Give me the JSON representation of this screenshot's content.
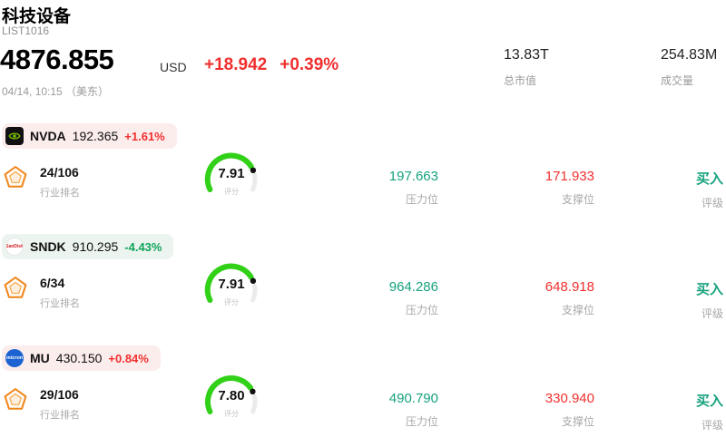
{
  "header": {
    "title": "科技设备",
    "subtitle": "LIST1016"
  },
  "quote": {
    "price": "4876.855",
    "currency": "USD",
    "change": "+18.942",
    "change_pct": "+0.39%",
    "timestamp": "04/14, 10:15 （美东）",
    "stats": [
      {
        "value": "13.83T",
        "label": "总市值"
      },
      {
        "value": "254.83M",
        "label": "成交量"
      }
    ]
  },
  "labels": {
    "rank": "行业排名",
    "score": "评分",
    "resistance": "压力位",
    "support": "支撑位",
    "rating": "评级"
  },
  "colors": {
    "up": "#f0302f",
    "down": "#10a55a",
    "teal": "#17a27e",
    "gauge": "#31d118"
  },
  "stocks": [
    {
      "ticker": "NVDA",
      "price": "192.365",
      "change_pct": "+1.61%",
      "direction": "up",
      "pill_bg": "#fceded",
      "logo": "nvidia",
      "logo_text": "",
      "rank": "24/106",
      "score": "7.91",
      "score_value": 7.91,
      "resistance": "197.663",
      "support": "171.933",
      "rating": "买入"
    },
    {
      "ticker": "SNDK",
      "price": "910.295",
      "change_pct": "-4.43%",
      "direction": "down",
      "pill_bg": "#ecf4ef",
      "logo": "sandisk",
      "logo_text": "SanDisk",
      "rank": "6/34",
      "score": "7.91",
      "score_value": 7.91,
      "resistance": "964.286",
      "support": "648.918",
      "rating": "买入"
    },
    {
      "ticker": "MU",
      "price": "430.150",
      "change_pct": "+0.84%",
      "direction": "up",
      "pill_bg": "#fceded",
      "logo": "micron",
      "logo_text": "micron",
      "rank": "29/106",
      "score": "7.80",
      "score_value": 7.8,
      "resistance": "490.790",
      "support": "330.940",
      "rating": "买入"
    }
  ]
}
